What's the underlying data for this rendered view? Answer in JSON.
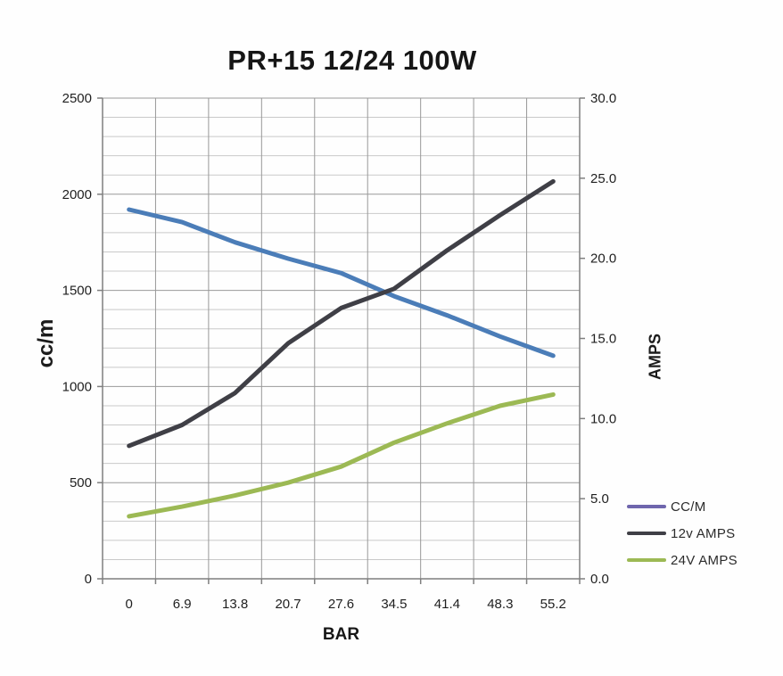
{
  "chart_data": {
    "type": "line",
    "title": "PR+15 12/24 100W",
    "xlabel": "BAR",
    "categories": [
      "0",
      "6.9",
      "13.8",
      "20.7",
      "27.6",
      "34.5",
      "41.4",
      "48.3",
      "55.2"
    ],
    "grid": true,
    "legend_position": "right-bottom",
    "left_axis": {
      "label": "cc/m",
      "min": 0,
      "max": 2500,
      "major_step": 500,
      "minor_step": 100,
      "tick_labels": [
        "0",
        "500",
        "1000",
        "1500",
        "2000",
        "2500"
      ]
    },
    "right_axis": {
      "label": "AMPS",
      "min": 0,
      "max": 30,
      "major_step": 5,
      "tick_labels": [
        "0.0",
        "5.0",
        "10.0",
        "15.0",
        "20.0",
        "25.0",
        "30.0"
      ]
    },
    "series": [
      {
        "name": "CC/M",
        "axis": "left",
        "color": "#4b7db8",
        "legend_color": "#6f66ad",
        "values": [
          1920,
          1855,
          1750,
          1665,
          1590,
          1470,
          1370,
          1260,
          1160
        ]
      },
      {
        "name": "12v AMPS",
        "axis": "right",
        "color": "#3f3f46",
        "legend_color": "#3f3f46",
        "values": [
          8.3,
          9.6,
          11.6,
          14.7,
          16.9,
          18.1,
          20.5,
          22.7,
          24.8
        ]
      },
      {
        "name": "24V AMPS",
        "axis": "right",
        "color": "#9cb954",
        "legend_color": "#9cb954",
        "values": [
          3.9,
          4.5,
          5.2,
          6.0,
          7.0,
          8.5,
          9.7,
          10.8,
          11.5
        ]
      }
    ],
    "colors": {
      "grid_major": "#999999",
      "grid_minor": "#c9c9c9",
      "axis_line": "#7f7f7f",
      "text": "#1f1f1f"
    }
  }
}
